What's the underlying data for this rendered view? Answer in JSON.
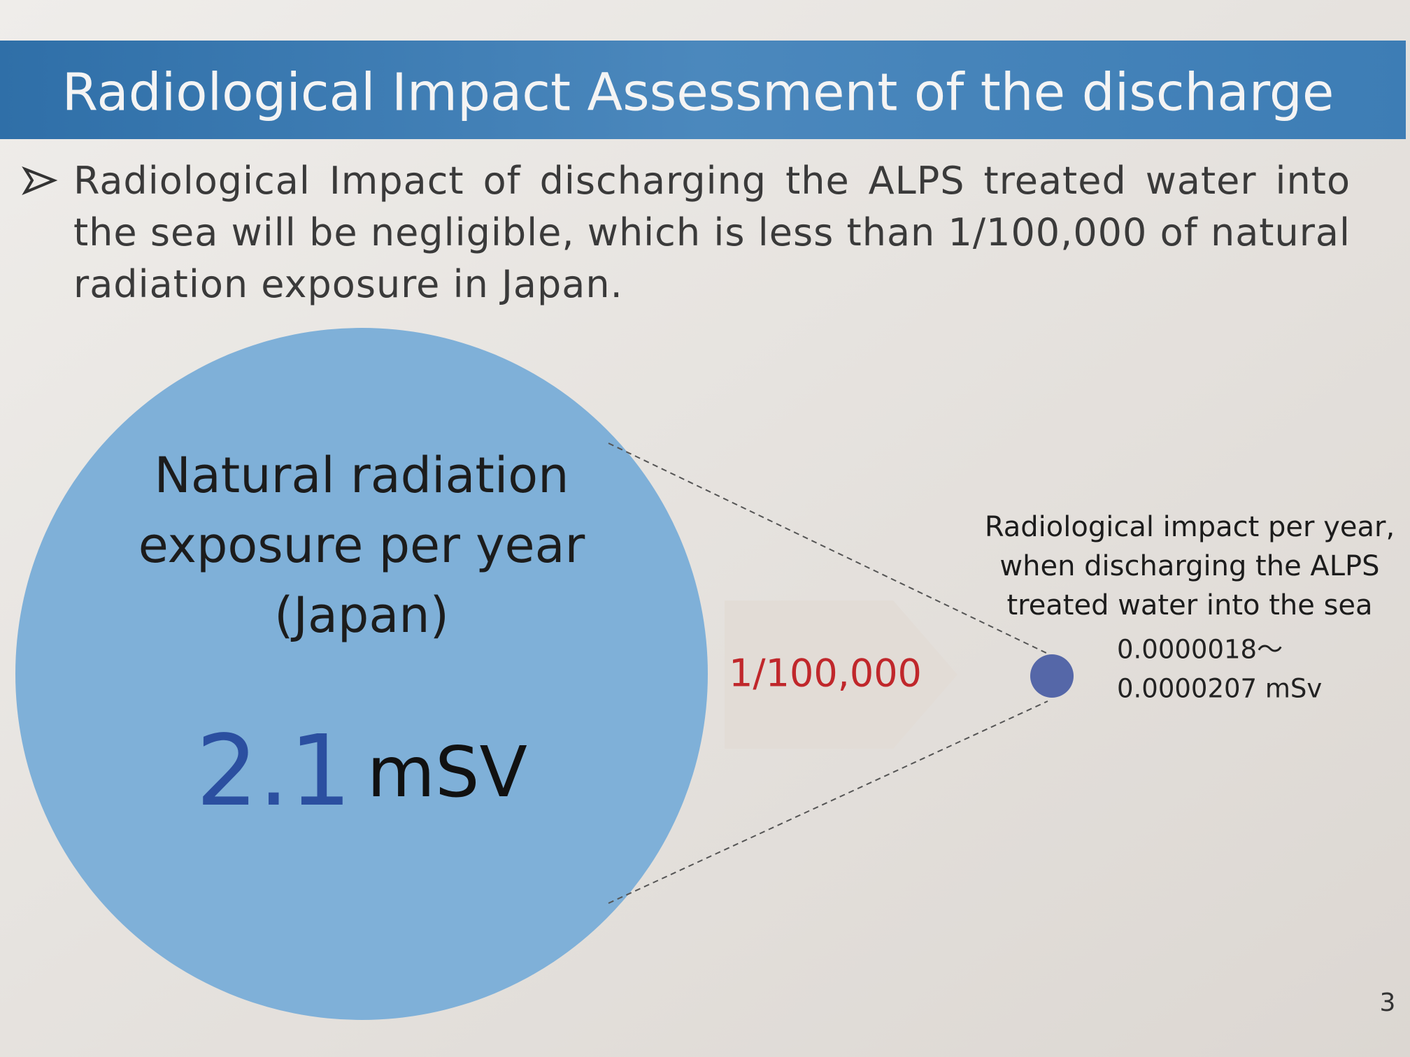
{
  "header": {
    "title": "Radiological Impact Assessment of the discharge"
  },
  "bullet": {
    "text": "Radiological Impact of discharging the ALPS treated water into the sea will be negligible, which is less than 1/100,000 of natural radiation exposure in Japan."
  },
  "natural": {
    "label_lines": [
      "Natural radiation",
      "exposure per year",
      "(Japan)"
    ],
    "value": 2.1,
    "unit": "mSV"
  },
  "ratio": {
    "label": "1/100,000"
  },
  "discharge": {
    "label_lines": [
      "Radiological impact per year,",
      "when discharging the ALPS",
      "treated water into the sea"
    ],
    "value_lines": [
      "0.0000018～",
      "0.0000207 mSv"
    ]
  },
  "page_number": "3"
}
